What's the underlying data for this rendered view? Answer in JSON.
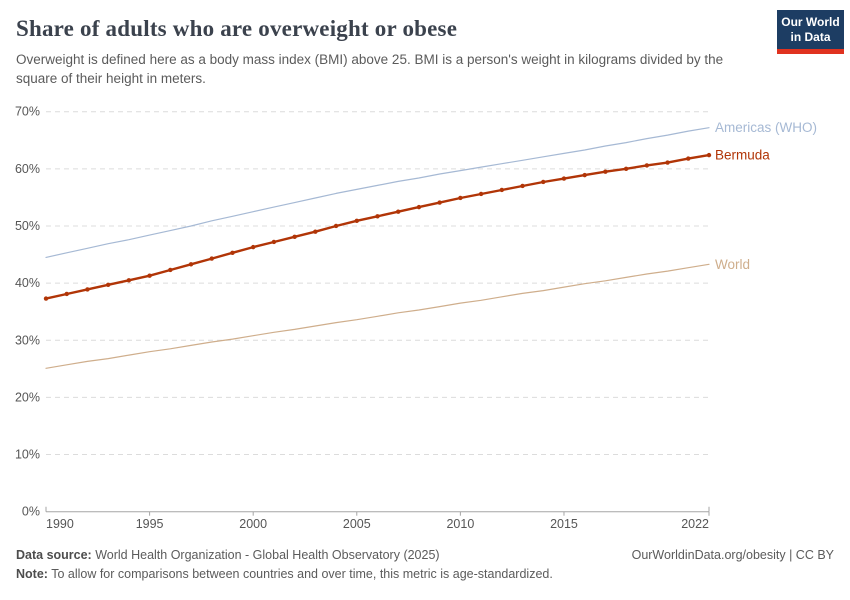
{
  "header": {
    "title": "Share of adults who are overweight or obese",
    "subtitle": "Overweight is defined here as a body mass index (BMI) above 25. BMI is a person's weight in kilograms divided by the square of their height in meters.",
    "logo": {
      "line1": "Our World",
      "line2": "in Data",
      "bg_color": "#1d3d63",
      "accent_color": "#e0321f"
    }
  },
  "chart_data": {
    "type": "line",
    "title": "Share of adults who are overweight or obese",
    "xlabel": "",
    "ylabel": "",
    "ylim": [
      0,
      70
    ],
    "grid": "horizontal-dashed",
    "legend_position": "end-of-line-labels",
    "x": [
      1990,
      1991,
      1992,
      1993,
      1994,
      1995,
      1996,
      1997,
      1998,
      1999,
      2000,
      2001,
      2002,
      2003,
      2004,
      2005,
      2006,
      2007,
      2008,
      2009,
      2010,
      2011,
      2012,
      2013,
      2014,
      2015,
      2016,
      2017,
      2018,
      2019,
      2020,
      2021,
      2022
    ],
    "series": [
      {
        "name": "Americas (WHO)",
        "color": "#a6b9d4",
        "line_width": 1.2,
        "markers": false,
        "values": [
          44.5,
          45.3,
          46.1,
          46.9,
          47.6,
          48.4,
          49.2,
          50.0,
          50.9,
          51.7,
          52.5,
          53.3,
          54.1,
          54.9,
          55.7,
          56.4,
          57.1,
          57.8,
          58.4,
          59.1,
          59.7,
          60.3,
          60.9,
          61.5,
          62.1,
          62.7,
          63.3,
          64.0,
          64.6,
          65.3,
          65.9,
          66.6,
          67.2
        ]
      },
      {
        "name": "Bermuda",
        "color": "#b13507",
        "line_width": 2.4,
        "markers": true,
        "values": [
          37.3,
          38.1,
          38.9,
          39.7,
          40.5,
          41.3,
          42.3,
          43.3,
          44.3,
          45.3,
          46.3,
          47.2,
          48.1,
          49.0,
          50.0,
          50.9,
          51.7,
          52.5,
          53.3,
          54.1,
          54.9,
          55.6,
          56.3,
          57.0,
          57.7,
          58.3,
          58.9,
          59.5,
          60.0,
          60.6,
          61.1,
          61.8,
          62.4
        ]
      },
      {
        "name": "World",
        "color": "#cfae8c",
        "line_width": 1.2,
        "markers": false,
        "values": [
          25.1,
          25.7,
          26.3,
          26.8,
          27.4,
          28.0,
          28.5,
          29.1,
          29.7,
          30.2,
          30.8,
          31.4,
          31.9,
          32.5,
          33.1,
          33.6,
          34.2,
          34.8,
          35.3,
          35.9,
          36.5,
          37.0,
          37.6,
          38.2,
          38.7,
          39.3,
          39.9,
          40.4,
          41.0,
          41.6,
          42.1,
          42.7,
          43.3
        ]
      }
    ],
    "ytick_values": [
      0,
      10,
      20,
      30,
      40,
      50,
      60,
      70
    ],
    "ytick_labels": [
      "0%",
      "10%",
      "20%",
      "30%",
      "40%",
      "50%",
      "60%",
      "70%"
    ],
    "xtick_years": [
      1990,
      1995,
      2000,
      2005,
      2010,
      2015,
      2022
    ],
    "xtick_labels": [
      "1990",
      "1995",
      "2000",
      "2005",
      "2010",
      "2015",
      "2022"
    ],
    "colors": {
      "grid": "#dcdcdc",
      "axis": "#a5a5a5",
      "tick_text": "#565656"
    }
  },
  "footer": {
    "data_source_label": "Data source:",
    "data_source": " World Health Organization - Global Health Observatory (2025)",
    "credit": "OurWorldinData.org/obesity | CC BY",
    "note_label": "Note:",
    "note": " To allow for comparisons between countries and over time, this metric is age-standardized."
  }
}
